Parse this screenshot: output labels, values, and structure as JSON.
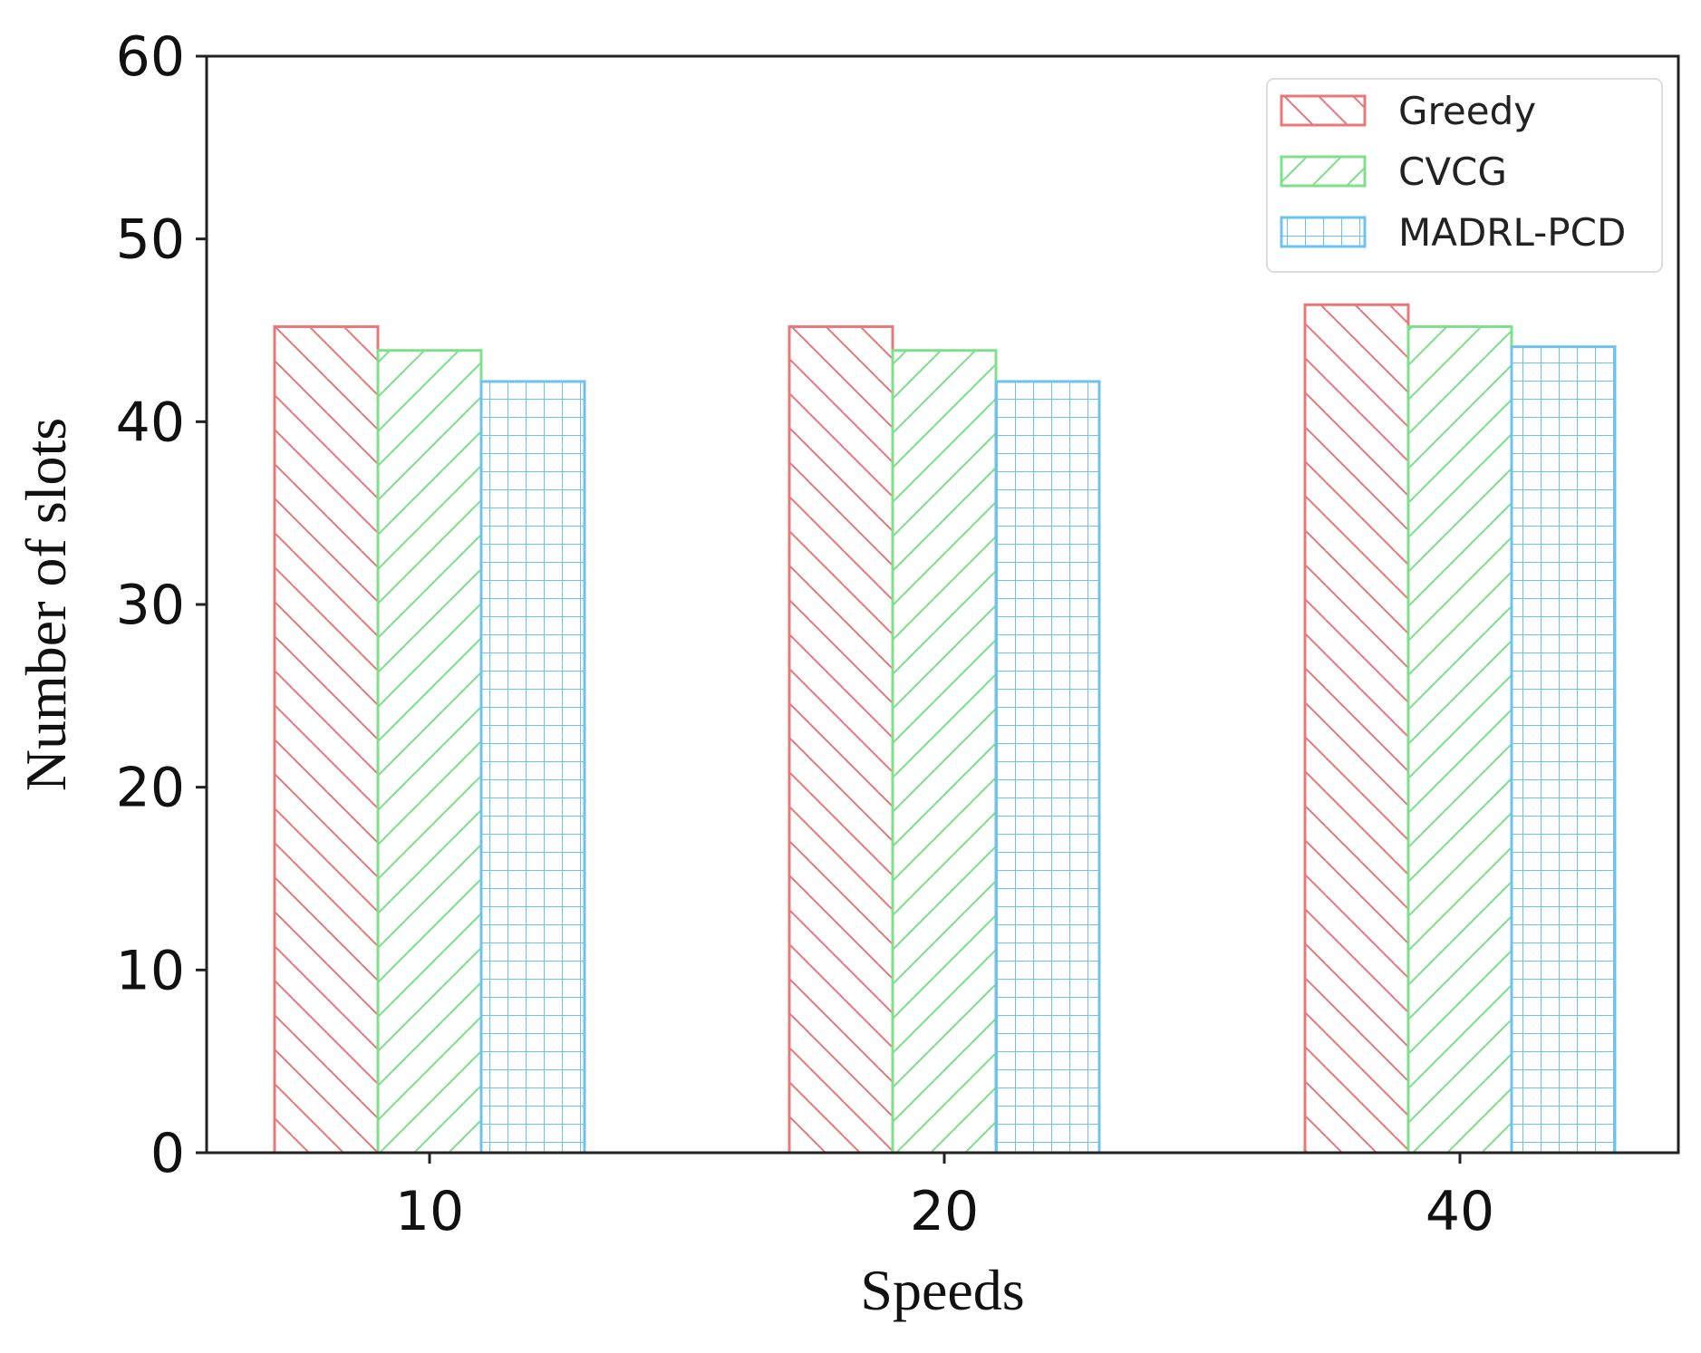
{
  "chart_data": {
    "type": "bar",
    "title": "",
    "xlabel": "Speeds",
    "ylabel": "Number of slots",
    "categories": [
      "10",
      "20",
      "40"
    ],
    "ylim": [
      0,
      60
    ],
    "yticks": [
      0,
      10,
      20,
      30,
      40,
      50,
      60
    ],
    "grid": false,
    "legend_position": "top-right",
    "series": [
      {
        "name": "Greedy",
        "values": [
          45.2,
          45.2,
          46.4
        ],
        "color": "#e8787a",
        "hatch": "backslash"
      },
      {
        "name": "CVCG",
        "values": [
          43.9,
          43.9,
          45.2
        ],
        "color": "#7ee08a",
        "hatch": "slash"
      },
      {
        "name": "MADRL-PCD",
        "values": [
          42.2,
          42.2,
          44.1
        ],
        "color": "#6ec3ee",
        "hatch": "grid"
      }
    ]
  }
}
